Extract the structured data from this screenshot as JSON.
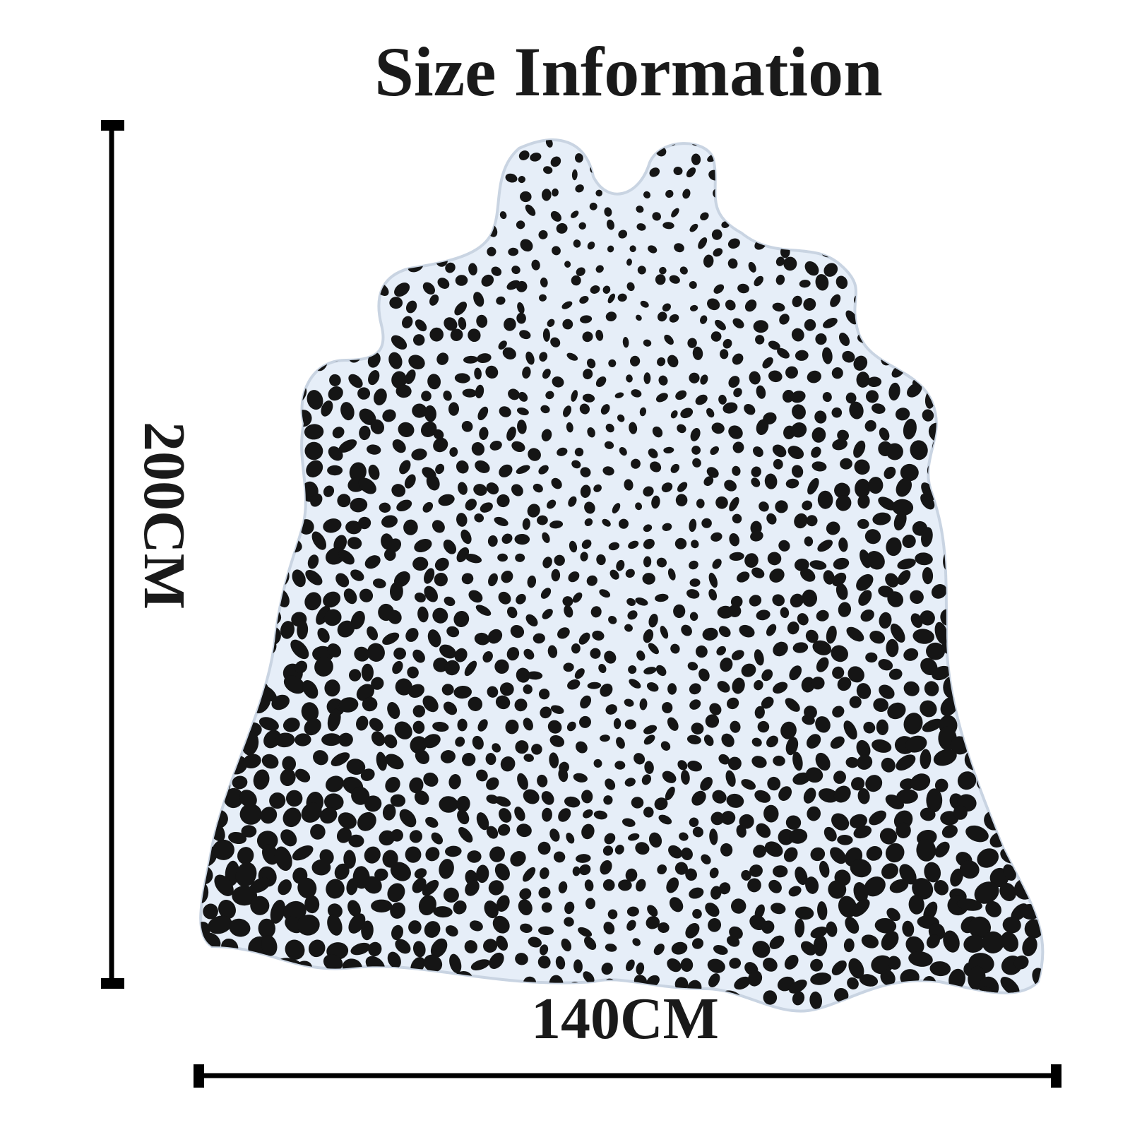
{
  "title": "Size Information",
  "height_label": "200CM",
  "width_label": "140CM"
}
